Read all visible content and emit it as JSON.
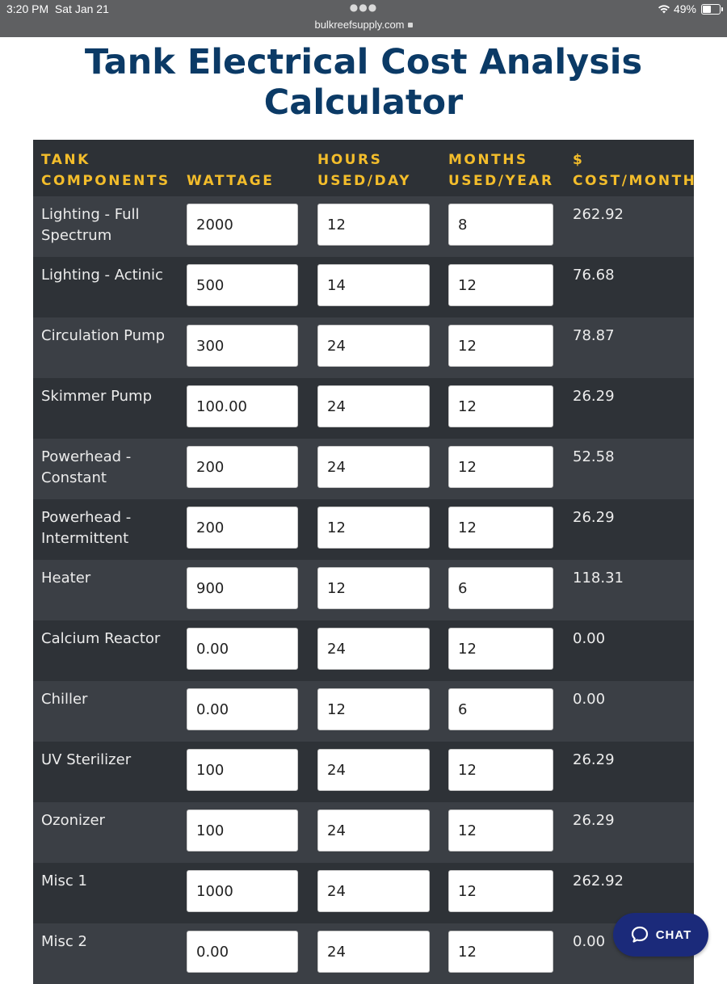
{
  "status": {
    "time": "3:20 PM",
    "date": "Sat Jan 21",
    "url": "bulkreefsupply.com",
    "battery": "49%"
  },
  "title_line1": "Tank Electrical Cost Analysis",
  "title_line2": "Calculator",
  "columns": {
    "components": "TANK\nCOMPONENTS",
    "wattage": "\nWATTAGE",
    "hours": "HOURS\nUSED/DAY",
    "months": "MONTHS\nUSED/YEAR",
    "cost": "$\nCOST/MONTH"
  },
  "rows": [
    {
      "name": "Lighting - Full Spectrum",
      "wattage": "2000",
      "hours": "12",
      "months": "8",
      "cost": "262.92"
    },
    {
      "name": "Lighting - Actinic",
      "wattage": "500",
      "hours": "14",
      "months": "12",
      "cost": "76.68"
    },
    {
      "name": "Circulation Pump",
      "wattage": "300",
      "hours": "24",
      "months": "12",
      "cost": "78.87"
    },
    {
      "name": "Skimmer Pump",
      "wattage": "100.00",
      "hours": "24",
      "months": "12",
      "cost": "26.29"
    },
    {
      "name": "Powerhead - Constant",
      "wattage": "200",
      "hours": "24",
      "months": "12",
      "cost": "52.58"
    },
    {
      "name": "Powerhead - Intermittent",
      "wattage": "200",
      "hours": "12",
      "months": "12",
      "cost": "26.29"
    },
    {
      "name": "Heater",
      "wattage": "900",
      "hours": "12",
      "months": "6",
      "cost": "118.31"
    },
    {
      "name": "Calcium Reactor",
      "wattage": "0.00",
      "hours": "24",
      "months": "12",
      "cost": "0.00"
    },
    {
      "name": "Chiller",
      "wattage": "0.00",
      "hours": "12",
      "months": "6",
      "cost": "0.00"
    },
    {
      "name": "UV Sterilizer",
      "wattage": "100",
      "hours": "24",
      "months": "12",
      "cost": "26.29"
    },
    {
      "name": "Ozonizer",
      "wattage": "100",
      "hours": "24",
      "months": "12",
      "cost": "26.29"
    },
    {
      "name": "Misc 1",
      "wattage": "1000",
      "hours": "24",
      "months": "12",
      "cost": "262.92"
    },
    {
      "name": "Misc 2",
      "wattage": "0.00",
      "hours": "24",
      "months": "12",
      "cost": "0.00"
    }
  ],
  "chat_label": "CHAT",
  "icons": {
    "wifi": "wifi-icon",
    "battery": "battery-icon",
    "lock": "lock-icon",
    "chat": "chat-bubble-icon"
  }
}
